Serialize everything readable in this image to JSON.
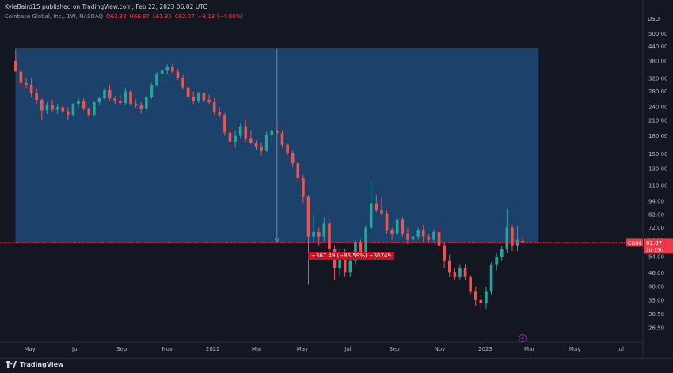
{
  "header": {
    "published": "KyleBaird15 published on TradingView.com, Feb 22, 2023 06:02 UTC",
    "symbol": "Coinbase Global, Inc., 1W, NASDAQ",
    "open": "O63.32",
    "high": "H66.87",
    "low": "L61.85",
    "close": "C62.07",
    "change": "−3.13 (−4.80%)"
  },
  "axis": {
    "currency": "USD",
    "price_labels": [
      "500.00",
      "440.00",
      "380.00",
      "320.00",
      "280.00",
      "240.00",
      "210.00",
      "180.00",
      "150.00",
      "130.00",
      "110.00",
      "94.00",
      "82.00",
      "72.00",
      "64.00",
      "54.00",
      "46.00",
      "40.00",
      "35.00",
      "30.50",
      "26.50"
    ],
    "time_labels": [
      "May",
      "Jul",
      "Sep",
      "Nov",
      "2022",
      "Mar",
      "May",
      "Jul",
      "Sep",
      "Nov",
      "2023",
      "Mar",
      "May",
      "Jul"
    ]
  },
  "last_price": {
    "ticker": "COIN",
    "value": "62.07",
    "countdown": "2d 15h"
  },
  "measurement": {
    "label": "−367.49 (−85.59%) −36749"
  },
  "footer": {
    "brand": "TradingView"
  },
  "colors": {
    "up": "#26a69a",
    "down": "#ef5350",
    "background": "#131722",
    "measure_fill": "#1e4a78",
    "price_line": "#f23645"
  },
  "chart_data": {
    "type": "candlestick",
    "interval": "1W",
    "y_scale": "log",
    "ylim": [
      23,
      560
    ],
    "x_range": [
      "2021-03-22",
      "2023-07-31"
    ],
    "candles": [
      {
        "date": "2021-04-12",
        "open": 381,
        "high": 429,
        "low": 342,
        "close": 342
      },
      {
        "date": "2021-04-19",
        "open": 342,
        "high": 353,
        "low": 290,
        "close": 305
      },
      {
        "date": "2021-04-26",
        "open": 305,
        "high": 322,
        "low": 290,
        "close": 300
      },
      {
        "date": "2021-05-03",
        "open": 300,
        "high": 320,
        "low": 265,
        "close": 275
      },
      {
        "date": "2021-05-10",
        "open": 275,
        "high": 290,
        "low": 248,
        "close": 258
      },
      {
        "date": "2021-05-17",
        "open": 258,
        "high": 262,
        "low": 212,
        "close": 232
      },
      {
        "date": "2021-05-24",
        "open": 232,
        "high": 252,
        "low": 224,
        "close": 245
      },
      {
        "date": "2021-05-31",
        "open": 245,
        "high": 258,
        "low": 230,
        "close": 234
      },
      {
        "date": "2021-06-07",
        "open": 234,
        "high": 248,
        "low": 224,
        "close": 240
      },
      {
        "date": "2021-06-14",
        "open": 240,
        "high": 246,
        "low": 225,
        "close": 230
      },
      {
        "date": "2021-06-21",
        "open": 230,
        "high": 240,
        "low": 210,
        "close": 222
      },
      {
        "date": "2021-06-28",
        "open": 222,
        "high": 250,
        "low": 218,
        "close": 248
      },
      {
        "date": "2021-07-05",
        "open": 248,
        "high": 262,
        "low": 240,
        "close": 255
      },
      {
        "date": "2021-07-12",
        "open": 255,
        "high": 262,
        "low": 232,
        "close": 236
      },
      {
        "date": "2021-07-19",
        "open": 236,
        "high": 238,
        "low": 215,
        "close": 222
      },
      {
        "date": "2021-07-26",
        "open": 222,
        "high": 255,
        "low": 219,
        "close": 252
      },
      {
        "date": "2021-08-02",
        "open": 252,
        "high": 264,
        "low": 246,
        "close": 262
      },
      {
        "date": "2021-08-09",
        "open": 262,
        "high": 290,
        "low": 258,
        "close": 284
      },
      {
        "date": "2021-08-16",
        "open": 284,
        "high": 300,
        "low": 255,
        "close": 262
      },
      {
        "date": "2021-08-23",
        "open": 262,
        "high": 268,
        "low": 248,
        "close": 256
      },
      {
        "date": "2021-08-30",
        "open": 256,
        "high": 270,
        "low": 246,
        "close": 250
      },
      {
        "date": "2021-09-06",
        "open": 250,
        "high": 290,
        "low": 246,
        "close": 280
      },
      {
        "date": "2021-09-13",
        "open": 280,
        "high": 285,
        "low": 242,
        "close": 248
      },
      {
        "date": "2021-09-20",
        "open": 248,
        "high": 260,
        "low": 238,
        "close": 244
      },
      {
        "date": "2021-09-27",
        "open": 244,
        "high": 252,
        "low": 225,
        "close": 235
      },
      {
        "date": "2021-10-04",
        "open": 235,
        "high": 268,
        "low": 230,
        "close": 265
      },
      {
        "date": "2021-10-11",
        "open": 265,
        "high": 305,
        "low": 260,
        "close": 300
      },
      {
        "date": "2021-10-18",
        "open": 300,
        "high": 340,
        "low": 294,
        "close": 335
      },
      {
        "date": "2021-10-25",
        "open": 335,
        "high": 352,
        "low": 310,
        "close": 345
      },
      {
        "date": "2021-11-01",
        "open": 345,
        "high": 368,
        "low": 333,
        "close": 358
      },
      {
        "date": "2021-11-08",
        "open": 358,
        "high": 370,
        "low": 335,
        "close": 342
      },
      {
        "date": "2021-11-15",
        "open": 342,
        "high": 350,
        "low": 315,
        "close": 322
      },
      {
        "date": "2021-11-22",
        "open": 322,
        "high": 330,
        "low": 285,
        "close": 292
      },
      {
        "date": "2021-11-29",
        "open": 292,
        "high": 300,
        "low": 258,
        "close": 266
      },
      {
        "date": "2021-12-06",
        "open": 266,
        "high": 280,
        "low": 248,
        "close": 254
      },
      {
        "date": "2021-12-13",
        "open": 254,
        "high": 280,
        "low": 250,
        "close": 275
      },
      {
        "date": "2021-12-20",
        "open": 275,
        "high": 278,
        "low": 252,
        "close": 258
      },
      {
        "date": "2021-12-27",
        "open": 258,
        "high": 272,
        "low": 248,
        "close": 252
      },
      {
        "date": "2022-01-03",
        "open": 252,
        "high": 262,
        "low": 222,
        "close": 228
      },
      {
        "date": "2022-01-10",
        "open": 228,
        "high": 240,
        "low": 216,
        "close": 222
      },
      {
        "date": "2022-01-17",
        "open": 222,
        "high": 226,
        "low": 180,
        "close": 186
      },
      {
        "date": "2022-01-24",
        "open": 186,
        "high": 194,
        "low": 162,
        "close": 170
      },
      {
        "date": "2022-01-31",
        "open": 170,
        "high": 190,
        "low": 160,
        "close": 180
      },
      {
        "date": "2022-02-07",
        "open": 180,
        "high": 205,
        "low": 176,
        "close": 198
      },
      {
        "date": "2022-02-14",
        "open": 198,
        "high": 210,
        "low": 170,
        "close": 176
      },
      {
        "date": "2022-02-21",
        "open": 176,
        "high": 190,
        "low": 166,
        "close": 168
      },
      {
        "date": "2022-02-28",
        "open": 168,
        "high": 172,
        "low": 156,
        "close": 162
      },
      {
        "date": "2022-03-07",
        "open": 162,
        "high": 168,
        "low": 148,
        "close": 155
      },
      {
        "date": "2022-03-14",
        "open": 155,
        "high": 188,
        "low": 153,
        "close": 182
      },
      {
        "date": "2022-03-21",
        "open": 182,
        "high": 193,
        "low": 170,
        "close": 190
      },
      {
        "date": "2022-03-28",
        "open": 190,
        "high": 208,
        "low": 180,
        "close": 185
      },
      {
        "date": "2022-04-04",
        "open": 185,
        "high": 190,
        "low": 160,
        "close": 165
      },
      {
        "date": "2022-04-11",
        "open": 165,
        "high": 168,
        "low": 148,
        "close": 152
      },
      {
        "date": "2022-04-18",
        "open": 152,
        "high": 155,
        "low": 132,
        "close": 137
      },
      {
        "date": "2022-04-25",
        "open": 137,
        "high": 140,
        "low": 114,
        "close": 118
      },
      {
        "date": "2022-05-02",
        "open": 118,
        "high": 122,
        "low": 92,
        "close": 98
      },
      {
        "date": "2022-05-09",
        "open": 98,
        "high": 100,
        "low": 40.8,
        "close": 66
      },
      {
        "date": "2022-05-16",
        "open": 66,
        "high": 82,
        "low": 62,
        "close": 69
      },
      {
        "date": "2022-05-23",
        "open": 69,
        "high": 72,
        "low": 60,
        "close": 66
      },
      {
        "date": "2022-05-30",
        "open": 66,
        "high": 80,
        "low": 63,
        "close": 75
      },
      {
        "date": "2022-06-06",
        "open": 75,
        "high": 78,
        "low": 55,
        "close": 58
      },
      {
        "date": "2022-06-13",
        "open": 58,
        "high": 60,
        "low": 43,
        "close": 48
      },
      {
        "date": "2022-06-20",
        "open": 48,
        "high": 58,
        "low": 45,
        "close": 55
      },
      {
        "date": "2022-06-27",
        "open": 55,
        "high": 58,
        "low": 44,
        "close": 46
      },
      {
        "date": "2022-07-04",
        "open": 46,
        "high": 55,
        "low": 44,
        "close": 52
      },
      {
        "date": "2022-07-11",
        "open": 52,
        "high": 64,
        "low": 50,
        "close": 62
      },
      {
        "date": "2022-07-18",
        "open": 62,
        "high": 64,
        "low": 55,
        "close": 56
      },
      {
        "date": "2022-07-25",
        "open": 56,
        "high": 74,
        "low": 55,
        "close": 72
      },
      {
        "date": "2022-08-01",
        "open": 72,
        "high": 116,
        "low": 70,
        "close": 92
      },
      {
        "date": "2022-08-08",
        "open": 92,
        "high": 100,
        "low": 84,
        "close": 86
      },
      {
        "date": "2022-08-15",
        "open": 86,
        "high": 98,
        "low": 82,
        "close": 83
      },
      {
        "date": "2022-08-22",
        "open": 83,
        "high": 86,
        "low": 68,
        "close": 70
      },
      {
        "date": "2022-08-29",
        "open": 70,
        "high": 72,
        "low": 64,
        "close": 68
      },
      {
        "date": "2022-09-05",
        "open": 68,
        "high": 80,
        "low": 66,
        "close": 78
      },
      {
        "date": "2022-09-12",
        "open": 78,
        "high": 80,
        "low": 66,
        "close": 68
      },
      {
        "date": "2022-09-19",
        "open": 68,
        "high": 72,
        "low": 61,
        "close": 64
      },
      {
        "date": "2022-09-26",
        "open": 64,
        "high": 67,
        "low": 60,
        "close": 66
      },
      {
        "date": "2022-10-03",
        "open": 66,
        "high": 72,
        "low": 64,
        "close": 70
      },
      {
        "date": "2022-10-10",
        "open": 70,
        "high": 74,
        "low": 62,
        "close": 66
      },
      {
        "date": "2022-10-17",
        "open": 66,
        "high": 68,
        "low": 62,
        "close": 64
      },
      {
        "date": "2022-10-24",
        "open": 64,
        "high": 70,
        "low": 62,
        "close": 69
      },
      {
        "date": "2022-10-31",
        "open": 69,
        "high": 72,
        "low": 57,
        "close": 60
      },
      {
        "date": "2022-11-07",
        "open": 60,
        "high": 62,
        "low": 48,
        "close": 52
      },
      {
        "date": "2022-11-14",
        "open": 52,
        "high": 55,
        "low": 44,
        "close": 46
      },
      {
        "date": "2022-11-21",
        "open": 46,
        "high": 48,
        "low": 43,
        "close": 44
      },
      {
        "date": "2022-11-28",
        "open": 44,
        "high": 50,
        "low": 43,
        "close": 48
      },
      {
        "date": "2022-12-05",
        "open": 48,
        "high": 50,
        "low": 43,
        "close": 44
      },
      {
        "date": "2022-12-12",
        "open": 44,
        "high": 45,
        "low": 37,
        "close": 38
      },
      {
        "date": "2022-12-19",
        "open": 38,
        "high": 40,
        "low": 33,
        "close": 35
      },
      {
        "date": "2022-12-26",
        "open": 35,
        "high": 37,
        "low": 31.6,
        "close": 34
      },
      {
        "date": "2023-01-02",
        "open": 34,
        "high": 40,
        "low": 32,
        "close": 38
      },
      {
        "date": "2023-01-09",
        "open": 38,
        "high": 51,
        "low": 37,
        "close": 50
      },
      {
        "date": "2023-01-16",
        "open": 50,
        "high": 56,
        "low": 47,
        "close": 54
      },
      {
        "date": "2023-01-23",
        "open": 54,
        "high": 60,
        "low": 52,
        "close": 58
      },
      {
        "date": "2023-01-30",
        "open": 58,
        "high": 87,
        "low": 56,
        "close": 72
      },
      {
        "date": "2023-02-06",
        "open": 72,
        "high": 74,
        "low": 57,
        "close": 60
      },
      {
        "date": "2023-02-13",
        "open": 60,
        "high": 73,
        "low": 57,
        "close": 64
      },
      {
        "date": "2023-02-20",
        "open": 63.32,
        "high": 66.87,
        "low": 61.85,
        "close": 62.07
      }
    ],
    "measurement_box": {
      "start_date": "2021-04-12",
      "end_date": "2023-03-13",
      "top": 429.54,
      "bottom": 62.05,
      "change": "−367.49 (−85.59%) −36749"
    }
  }
}
